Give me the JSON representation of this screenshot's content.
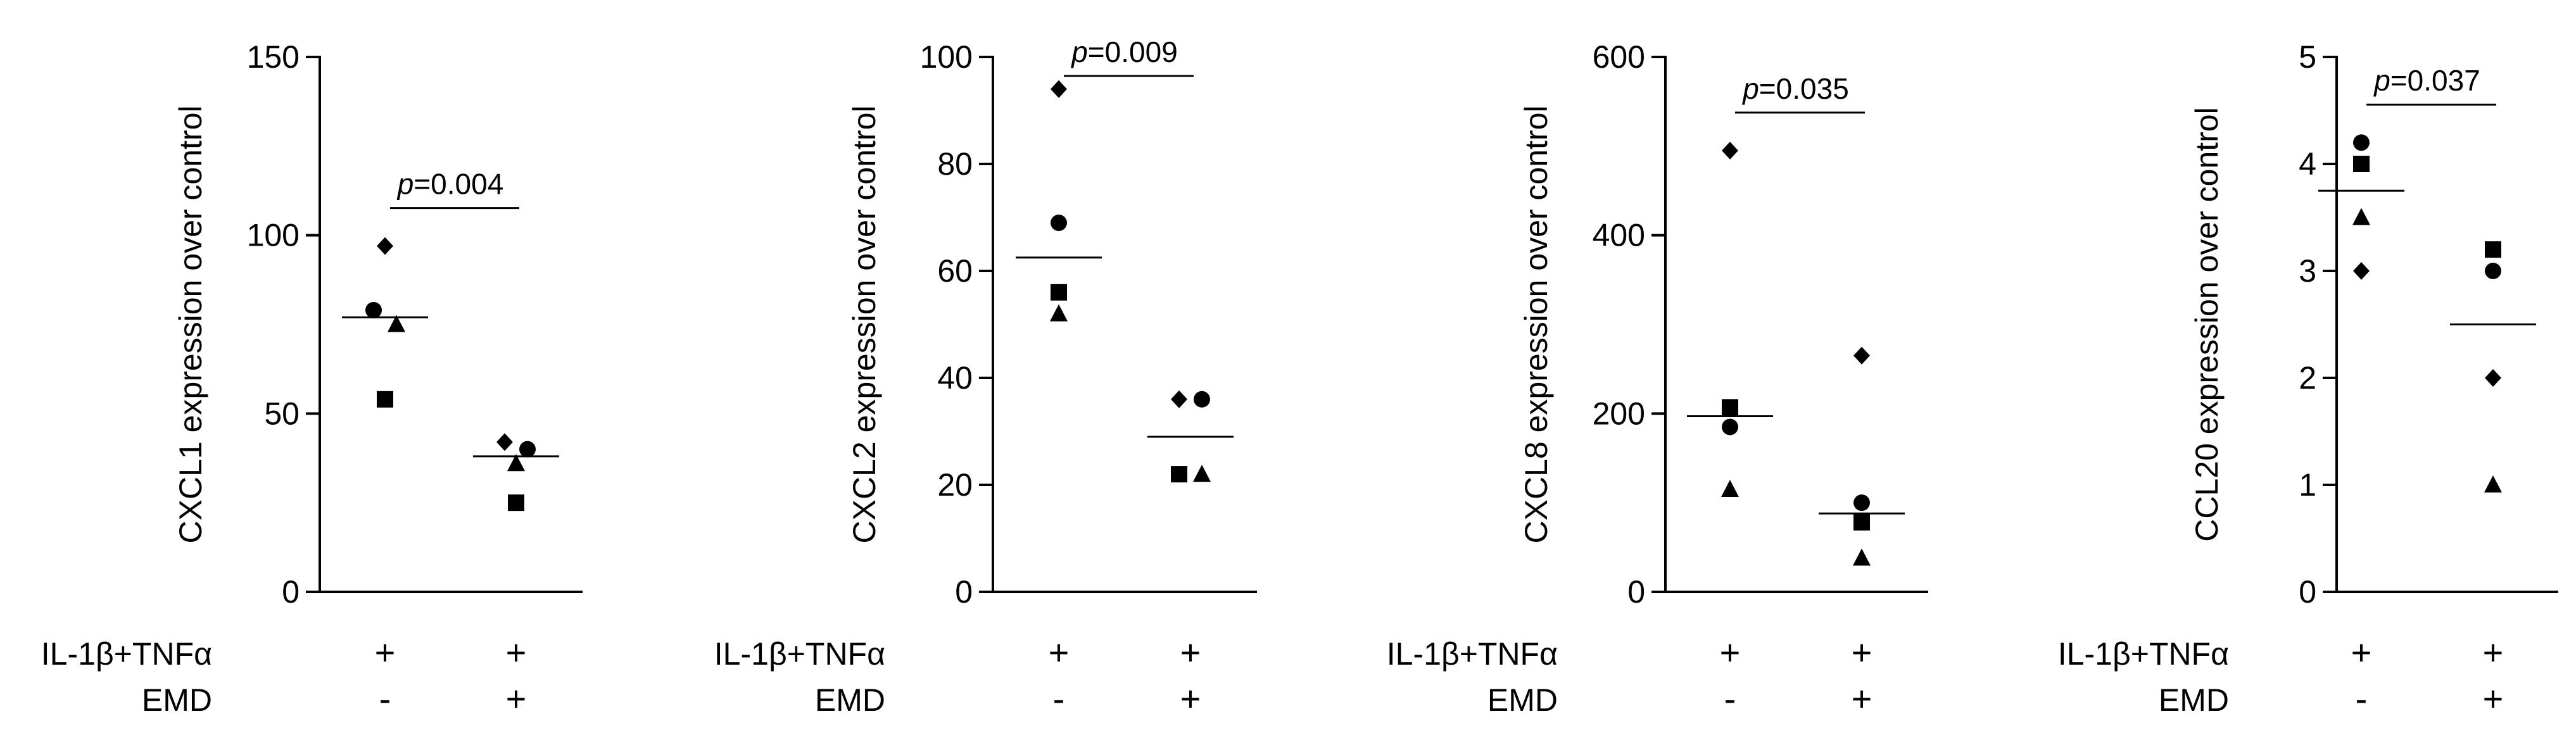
{
  "chart_data": [
    {
      "type": "scatter",
      "ylabel": "CXCL1 expression over control",
      "ylim": [
        0,
        150
      ],
      "yticks": [
        0,
        50,
        100,
        150
      ],
      "groups": [
        {
          "treatment": "+",
          "emd": "-",
          "mean": 77,
          "points": [
            {
              "shape": "diamond",
              "value": 97
            },
            {
              "shape": "circle",
              "value": 79
            },
            {
              "shape": "triangle",
              "value": 75
            },
            {
              "shape": "square",
              "value": 54
            }
          ]
        },
        {
          "treatment": "+",
          "emd": "+",
          "mean": 38,
          "points": [
            {
              "shape": "diamond",
              "value": 42
            },
            {
              "shape": "circle",
              "value": 40
            },
            {
              "shape": "triangle",
              "value": 36
            },
            {
              "shape": "square",
              "value": 25
            }
          ]
        }
      ],
      "pvalue": "p=0.004"
    },
    {
      "type": "scatter",
      "ylabel": "CXCL2 expression over control",
      "ylim": [
        0,
        100
      ],
      "yticks": [
        0,
        20,
        40,
        60,
        80,
        100
      ],
      "groups": [
        {
          "treatment": "+",
          "emd": "-",
          "mean": 62.5,
          "points": [
            {
              "shape": "diamond",
              "value": 94
            },
            {
              "shape": "circle",
              "value": 69
            },
            {
              "shape": "square",
              "value": 56
            },
            {
              "shape": "triangle",
              "value": 52
            }
          ]
        },
        {
          "treatment": "+",
          "emd": "+",
          "mean": 29,
          "points": [
            {
              "shape": "diamond",
              "value": 36
            },
            {
              "shape": "circle",
              "value": 36
            },
            {
              "shape": "square",
              "value": 22
            },
            {
              "shape": "triangle",
              "value": 22
            }
          ]
        }
      ],
      "pvalue": "p=0.009"
    },
    {
      "type": "scatter",
      "ylabel": "CXCL8 expression over control",
      "ylim": [
        0,
        600
      ],
      "yticks": [
        0,
        200,
        400,
        600
      ],
      "groups": [
        {
          "treatment": "+",
          "emd": "-",
          "mean": 197,
          "points": [
            {
              "shape": "diamond",
              "value": 495
            },
            {
              "shape": "square",
              "value": 207
            },
            {
              "shape": "circle",
              "value": 185
            },
            {
              "shape": "triangle",
              "value": 115
            }
          ]
        },
        {
          "treatment": "+",
          "emd": "+",
          "mean": 88,
          "points": [
            {
              "shape": "diamond",
              "value": 265
            },
            {
              "shape": "circle",
              "value": 100
            },
            {
              "shape": "square",
              "value": 78
            },
            {
              "shape": "triangle",
              "value": 38
            }
          ]
        }
      ],
      "pvalue": "p=0.035"
    },
    {
      "type": "scatter",
      "ylabel": "CCL20 expression over control",
      "ylim": [
        0,
        5
      ],
      "yticks": [
        0,
        1,
        2,
        3,
        4,
        5
      ],
      "groups": [
        {
          "treatment": "+",
          "emd": "-",
          "mean": 3.75,
          "points": [
            {
              "shape": "circle",
              "value": 4.2
            },
            {
              "shape": "square",
              "value": 4.0
            },
            {
              "shape": "triangle",
              "value": 3.5
            },
            {
              "shape": "diamond",
              "value": 3.0
            }
          ]
        },
        {
          "treatment": "+",
          "emd": "+",
          "mean": 2.5,
          "points": [
            {
              "shape": "square",
              "value": 3.2
            },
            {
              "shape": "circle",
              "value": 3.0
            },
            {
              "shape": "diamond",
              "value": 2.0
            },
            {
              "shape": "triangle",
              "value": 1.0
            }
          ]
        }
      ],
      "pvalue": "p=0.037"
    }
  ],
  "row_labels": {
    "treatment": "IL-1β+TNFα",
    "emd": "EMD"
  },
  "colors": {
    "ink": "#000000",
    "mean_line": "#000000",
    "background": "#ffffff"
  }
}
